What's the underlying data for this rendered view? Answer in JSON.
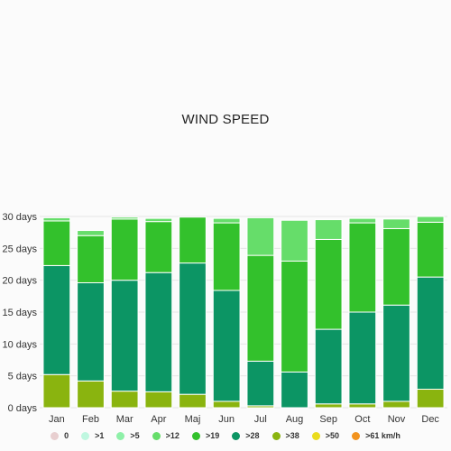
{
  "chart_data": {
    "type": "bar",
    "stacked": true,
    "title": "WIND SPEED",
    "xlabel": "",
    "ylabel": "",
    "ylim": [
      0,
      30
    ],
    "yticks": [
      0,
      5,
      10,
      15,
      20,
      25,
      30
    ],
    "ytick_suffix": " days",
    "categories": [
      "Jan",
      "Feb",
      "Mar",
      "Apr",
      "Maj",
      "Jun",
      "Jul",
      "Aug",
      "Sep",
      "Oct",
      "Nov",
      "Dec"
    ],
    "legend_position": "bottom",
    "series": [
      {
        "name": "0",
        "color": "#e8cfd0",
        "values": [
          0,
          0,
          0,
          0,
          0,
          0,
          0,
          0,
          0,
          0,
          0,
          0
        ]
      },
      {
        "name": ">1",
        "color": "#bff7e0",
        "values": [
          0,
          0,
          0,
          0,
          0,
          0,
          0,
          0,
          0,
          0,
          0,
          0
        ]
      },
      {
        "name": ">5",
        "color": "#8ef0a8",
        "values": [
          0,
          0,
          0,
          0,
          0,
          0,
          0,
          0,
          0,
          0,
          0,
          0
        ]
      },
      {
        "name": ">12",
        "color": "#66dd6a",
        "values": [
          0.5,
          0.8,
          0.3,
          0.5,
          0,
          0.7,
          5.9,
          6.4,
          3.1,
          0.7,
          1.5,
          0.9
        ]
      },
      {
        "name": ">19",
        "color": "#33c12c",
        "values": [
          7.0,
          7.4,
          9.6,
          8.0,
          7.2,
          10.6,
          16.6,
          17.4,
          14.1,
          14.0,
          12.0,
          8.6
        ]
      },
      {
        "name": ">28",
        "color": "#0c9564",
        "values": [
          17.1,
          15.4,
          17.4,
          18.7,
          20.6,
          17.4,
          7.0,
          5.6,
          11.7,
          14.4,
          15.1,
          17.6
        ]
      },
      {
        "name": ">38",
        "color": "#8ab40f",
        "values": [
          5.2,
          4.2,
          2.6,
          2.5,
          2.1,
          1.0,
          0.3,
          0,
          0.6,
          0.6,
          1.0,
          2.9
        ]
      },
      {
        "name": ">50",
        "color": "#eadc1e",
        "values": [
          0,
          0,
          0,
          0,
          0,
          0,
          0,
          0,
          0,
          0,
          0,
          0
        ]
      },
      {
        "name": ">61 km/h",
        "color": "#f2931e",
        "values": [
          0,
          0,
          0,
          0,
          0,
          0,
          0,
          0,
          0,
          0,
          0,
          0
        ]
      }
    ]
  }
}
